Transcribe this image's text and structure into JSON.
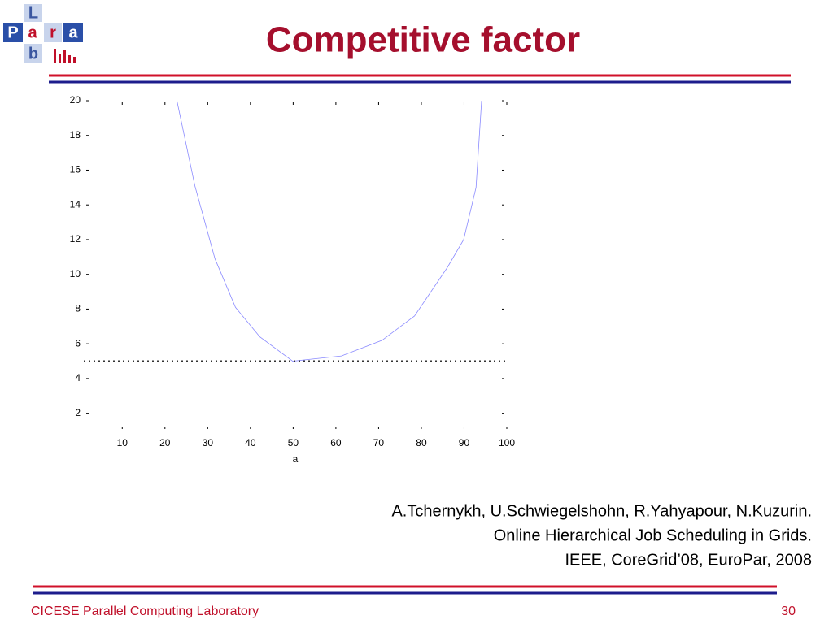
{
  "title": "Competitive factor",
  "logo": [
    "L",
    "P",
    "a",
    "r",
    "a",
    "b"
  ],
  "citation": [
    "A.Tchernykh, U.Schwiegelshohn, R.Yahyapour, N.Kuzurin.",
    "Online Hierarchical Job Scheduling in Grids.",
    "IEEE, CoreGrid’08, EuroPar, 2008"
  ],
  "footer": {
    "lab": "CICESE Parallel Computing Laboratory",
    "page_number": 30
  },
  "chart_data": {
    "type": "line",
    "xlabel": "a",
    "series": [
      {
        "color": "#8a8aff",
        "style": "solid",
        "x": [
          22.8,
          27.0,
          31.7,
          36.5,
          42.2,
          49.9,
          61.3,
          70.8,
          78.4,
          86.1,
          89.9,
          92.8,
          94.1
        ],
        "values": [
          20,
          15.1,
          10.9,
          8.1,
          6.4,
          5.0,
          5.3,
          6.2,
          7.6,
          10.4,
          12.0,
          15.0,
          20
        ]
      },
      {
        "color": "#333333",
        "style": "dotted",
        "x": [
          1,
          100
        ],
        "values": [
          5,
          5
        ]
      }
    ],
    "xlim": [
      1,
      100
    ],
    "xticks": [
      10,
      20,
      30,
      40,
      50,
      60,
      70,
      80,
      90,
      100
    ],
    "ylim": [
      1,
      20
    ],
    "yticks": [
      2,
      4,
      6,
      8,
      10,
      12,
      14,
      16,
      18,
      20
    ],
    "grid": false
  }
}
